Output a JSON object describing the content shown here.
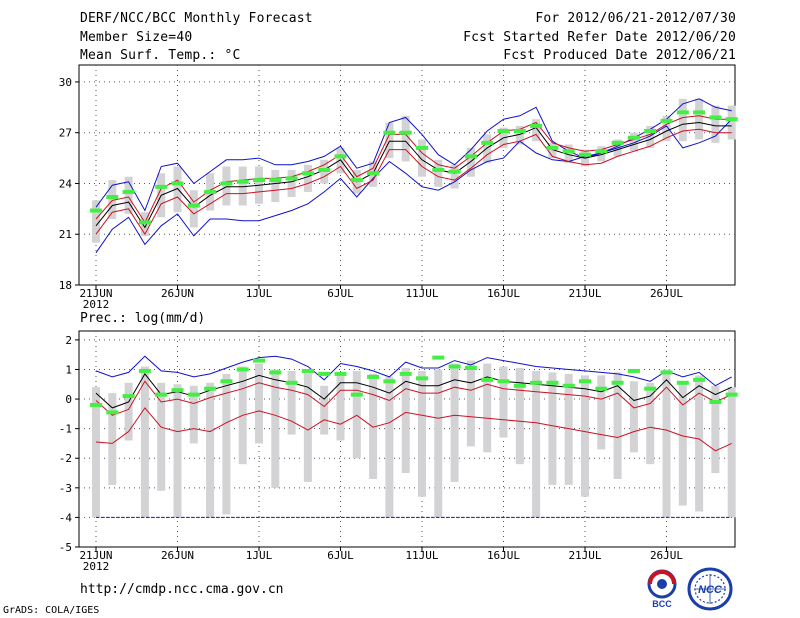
{
  "header": {
    "title": "DERF/NCC/BCC Monthly Forecast",
    "member_size": "Member Size=40",
    "variable": "Mean Surf. Temp.: °C",
    "forecast_period": "For 2012/06/21-2012/07/30",
    "refer_date": "Fcst Started Refer Date 2012/06/20",
    "produced_date": "Fcst Produced Date 2012/06/21"
  },
  "footer": {
    "url": "http://cmdp.ncc.cma.gov.cn",
    "credit": "GrADS: COLA/IGES",
    "logo_left_text": "BCC",
    "logo_right_text": "NCC"
  },
  "colors": {
    "box": "#d3d3d6",
    "median": "#44ee44",
    "mean": "#000000",
    "envelope": "#1111cc",
    "spread": "#cc1122",
    "grid": "#555555"
  },
  "chart_data": [
    {
      "type": "box-ensemble",
      "title": "Mean Surf. Temp.: °C",
      "ylim": [
        18,
        31
      ],
      "yticks": [
        18,
        21,
        24,
        27,
        30
      ],
      "ytick_labels": [
        "18",
        "21",
        "24",
        "27",
        "30"
      ],
      "xtick_days": [
        0,
        5,
        10,
        15,
        20,
        25,
        30,
        35
      ],
      "xtick_labels": [
        "21JUN",
        "26JUN",
        "1JUL",
        "6JUL",
        "11JUL",
        "16JUL",
        "21JUL",
        "26JUL"
      ],
      "year_label": "2012",
      "days": 40,
      "max": [
        19.9,
        21.3,
        22.0,
        20.4,
        21.5,
        22.2,
        20.9,
        21.9,
        21.9,
        21.8,
        21.8,
        22.1,
        22.4,
        22.8,
        23.5,
        24.3,
        23.2,
        24.3,
        25.3,
        24.6,
        23.8,
        23.6,
        24.1,
        24.8,
        25.3,
        25.5,
        26.5,
        25.8,
        25.4,
        25.3,
        25.6,
        25.8,
        26.1,
        26.4,
        26.8,
        27.4,
        26.1,
        26.4,
        26.8,
        27.8
      ],
      "upper": [
        22.6,
        23.9,
        24.1,
        22.4,
        25.0,
        25.2,
        24.0,
        24.7,
        25.4,
        25.4,
        25.5,
        25.1,
        25.1,
        25.3,
        25.6,
        26.2,
        24.9,
        25.2,
        27.6,
        27.9,
        26.9,
        25.7,
        25.1,
        26.0,
        27.1,
        27.8,
        28.0,
        28.5,
        26.5,
        25.9,
        25.5,
        25.8,
        26.2,
        26.7,
        27.2,
        27.8,
        28.7,
        29.0,
        28.5,
        28.3
      ],
      "mean": [
        21.5,
        22.7,
        22.9,
        21.4,
        23.3,
        23.7,
        22.6,
        23.3,
        23.8,
        23.8,
        23.9,
        24.0,
        24.1,
        24.4,
        24.8,
        25.4,
        24.1,
        24.6,
        26.5,
        26.5,
        25.4,
        24.8,
        24.6,
        25.3,
        26.1,
        26.7,
        26.9,
        27.3,
        26.0,
        25.7,
        25.5,
        25.7,
        26.0,
        26.3,
        26.6,
        27.1,
        27.5,
        27.6,
        27.4,
        27.4
      ],
      "red_high": [
        21.9,
        23.0,
        23.2,
        21.7,
        23.7,
        24.2,
        22.9,
        23.6,
        24.1,
        24.2,
        24.3,
        24.3,
        24.4,
        24.7,
        25.1,
        25.7,
        24.4,
        24.9,
        26.9,
        26.9,
        25.8,
        25.1,
        24.9,
        25.6,
        26.4,
        27.1,
        27.2,
        27.6,
        26.4,
        26.1,
        25.9,
        26.0,
        26.3,
        26.6,
        26.9,
        27.5,
        27.9,
        28.0,
        27.8,
        27.8
      ],
      "red_low": [
        21.0,
        22.3,
        22.5,
        21.0,
        22.8,
        23.2,
        22.2,
        22.8,
        23.4,
        23.4,
        23.5,
        23.6,
        23.7,
        24.0,
        24.4,
        25.0,
        23.7,
        24.2,
        26.0,
        26.0,
        25.0,
        24.4,
        24.2,
        24.9,
        25.7,
        26.3,
        26.5,
        26.9,
        25.6,
        25.3,
        25.1,
        25.2,
        25.6,
        25.9,
        26.2,
        26.7,
        27.1,
        27.2,
        27.0,
        27.0
      ],
      "median": [
        22.4,
        23.2,
        23.5,
        21.7,
        23.8,
        24.0,
        22.7,
        23.5,
        24.0,
        24.1,
        24.2,
        24.2,
        24.3,
        24.6,
        24.8,
        25.6,
        24.2,
        24.6,
        27.0,
        27.0,
        26.1,
        24.8,
        24.7,
        25.6,
        26.4,
        27.1,
        27.1,
        27.4,
        26.1,
        25.9,
        25.7,
        25.9,
        26.4,
        26.7,
        27.1,
        27.7,
        28.2,
        28.2,
        27.9,
        27.8
      ],
      "box_top": [
        23.0,
        24.2,
        24.4,
        22.3,
        24.6,
        25.0,
        23.6,
        24.6,
        25.0,
        25.0,
        25.0,
        24.8,
        24.8,
        25.1,
        25.4,
        26.1,
        24.8,
        25.3,
        27.6,
        28.0,
        26.6,
        25.4,
        25.1,
        26.1,
        26.9,
        27.3,
        27.4,
        27.8,
        26.4,
        26.3,
        26.0,
        26.2,
        26.6,
        27.0,
        27.4,
        28.0,
        29.0,
        29.0,
        28.6,
        28.6
      ],
      "box_bot": [
        20.5,
        21.9,
        22.2,
        20.9,
        22.0,
        22.3,
        21.4,
        22.4,
        22.7,
        22.7,
        22.8,
        22.9,
        23.2,
        23.5,
        24.0,
        24.6,
        23.4,
        23.8,
        25.5,
        25.3,
        24.4,
        23.8,
        23.7,
        24.4,
        25.2,
        26.1,
        26.3,
        26.5,
        25.5,
        25.2,
        25.0,
        25.3,
        25.6,
        25.9,
        26.1,
        26.5,
        26.5,
        26.6,
        26.4,
        26.6
      ]
    },
    {
      "type": "box-ensemble",
      "title": "Prec.: log(mm/d)",
      "ylim": [
        -5,
        2.3
      ],
      "yticks": [
        -5,
        -4,
        -3,
        -2,
        -1,
        0,
        1,
        2
      ],
      "ytick_labels": [
        "-5",
        "-4",
        "-3",
        "-2",
        "-1",
        "0",
        "1",
        "2"
      ],
      "xtick_days": [
        0,
        5,
        10,
        15,
        20,
        25,
        30,
        35
      ],
      "xtick_labels": [
        "21JUN",
        "26JUN",
        "1JUL",
        "6JUL",
        "11JUL",
        "16JUL",
        "21JUL",
        "26JUL"
      ],
      "year_label": "2012",
      "days": 40,
      "floor_line": -4,
      "upper": [
        0.95,
        0.75,
        0.9,
        1.45,
        0.95,
        0.9,
        0.75,
        0.85,
        1.05,
        1.25,
        1.4,
        1.45,
        1.35,
        1.1,
        0.65,
        1.2,
        1.1,
        0.95,
        0.75,
        1.25,
        1.05,
        1.05,
        1.3,
        1.15,
        1.4,
        1.3,
        1.2,
        1.1,
        1.05,
        1.0,
        0.95,
        0.9,
        0.85,
        0.75,
        0.6,
        0.95,
        0.75,
        0.9,
        0.45,
        0.75
      ],
      "mean": [
        0.2,
        -0.3,
        -0.1,
        0.85,
        0.15,
        0.25,
        0.1,
        0.3,
        0.45,
        0.6,
        0.8,
        0.65,
        0.55,
        0.4,
        0.0,
        0.55,
        0.55,
        0.4,
        0.2,
        0.6,
        0.45,
        0.45,
        0.65,
        0.55,
        0.75,
        0.6,
        0.55,
        0.5,
        0.45,
        0.4,
        0.35,
        0.25,
        0.45,
        -0.05,
        0.1,
        0.65,
        0.05,
        0.45,
        0.15,
        0.4
      ],
      "red_high": [
        -0.05,
        -0.55,
        -0.35,
        0.6,
        -0.1,
        0.0,
        -0.15,
        0.05,
        0.2,
        0.35,
        0.55,
        0.4,
        0.3,
        0.15,
        -0.25,
        0.3,
        0.3,
        0.15,
        -0.05,
        0.35,
        0.2,
        0.2,
        0.4,
        0.3,
        0.5,
        0.35,
        0.3,
        0.25,
        0.2,
        0.15,
        0.1,
        0.0,
        0.2,
        -0.3,
        -0.15,
        0.4,
        -0.2,
        0.2,
        -0.1,
        0.15
      ],
      "red_low": [
        -1.45,
        -1.5,
        -1.1,
        -0.3,
        -0.95,
        -1.1,
        -1.0,
        -1.1,
        -0.8,
        -0.55,
        -0.4,
        -0.55,
        -0.75,
        -1.05,
        -0.7,
        -0.85,
        -0.55,
        -0.95,
        -0.8,
        -0.45,
        -0.55,
        -0.65,
        -0.55,
        -0.6,
        -0.65,
        -0.7,
        -0.75,
        -0.8,
        -0.9,
        -1.0,
        -1.1,
        -1.2,
        -1.3,
        -1.1,
        -0.95,
        -1.05,
        -1.25,
        -1.35,
        -1.75,
        -1.5
      ],
      "median": [
        -0.2,
        -0.45,
        0.1,
        0.95,
        0.15,
        0.3,
        0.15,
        0.35,
        0.6,
        1.0,
        1.3,
        0.9,
        0.55,
        0.95,
        0.85,
        0.85,
        0.15,
        0.75,
        0.6,
        0.85,
        0.7,
        1.4,
        1.1,
        1.05,
        0.65,
        0.6,
        0.45,
        0.55,
        0.55,
        0.45,
        0.6,
        0.35,
        0.55,
        0.95,
        0.35,
        0.9,
        0.55,
        0.65,
        -0.1,
        0.15
      ],
      "box_top": [
        0.4,
        0.2,
        0.55,
        1.1,
        0.55,
        0.5,
        0.45,
        0.55,
        0.85,
        1.1,
        1.2,
        1.0,
        0.95,
        0.9,
        0.45,
        0.9,
        0.95,
        0.85,
        0.75,
        1.05,
        0.95,
        1.0,
        1.2,
        1.3,
        1.2,
        1.1,
        1.05,
        0.95,
        0.9,
        0.85,
        0.8,
        0.8,
        0.9,
        0.6,
        0.55,
        1.0,
        0.6,
        0.8,
        0.45,
        0.4
      ],
      "box_bot": [
        -4.0,
        -2.9,
        -1.4,
        -4.0,
        -3.1,
        -4.0,
        -1.5,
        -4.0,
        -3.9,
        -2.2,
        -1.5,
        -3.0,
        -1.2,
        -2.8,
        -1.2,
        -1.4,
        -2.0,
        -2.7,
        -4.0,
        -2.5,
        -3.3,
        -4.0,
        -2.8,
        -1.6,
        -1.8,
        -1.3,
        -2.2,
        -4.0,
        -2.9,
        -2.9,
        -3.3,
        -1.7,
        -2.7,
        -1.8,
        -2.2,
        -4.0,
        -3.6,
        -3.8,
        -2.5,
        -4.0
      ]
    }
  ]
}
